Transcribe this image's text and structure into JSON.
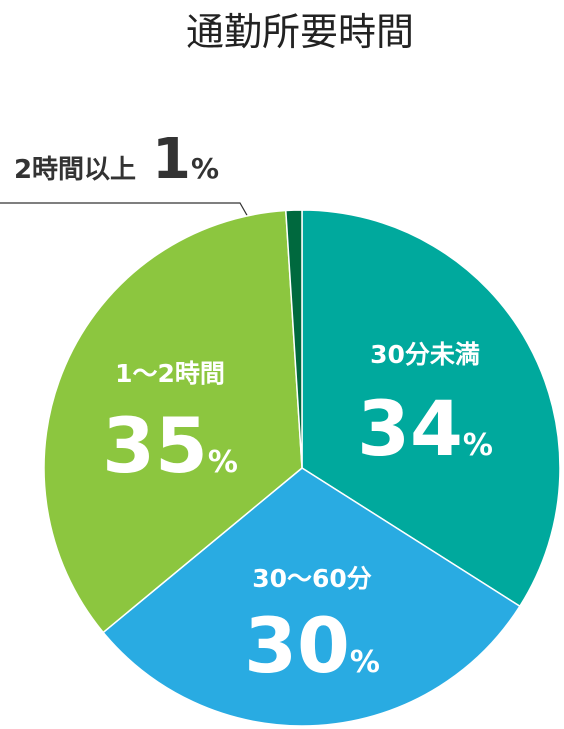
{
  "chart_data": {
    "type": "pie",
    "title": "通勤所要時間",
    "unit": "%",
    "categories": [
      "30分未満",
      "30〜60分",
      "1〜2時間",
      "2時間以上"
    ],
    "values": [
      34,
      30,
      35,
      1
    ],
    "colors": [
      "#00a99d",
      "#29abe2",
      "#8cc63f",
      "#00693e"
    ]
  }
}
